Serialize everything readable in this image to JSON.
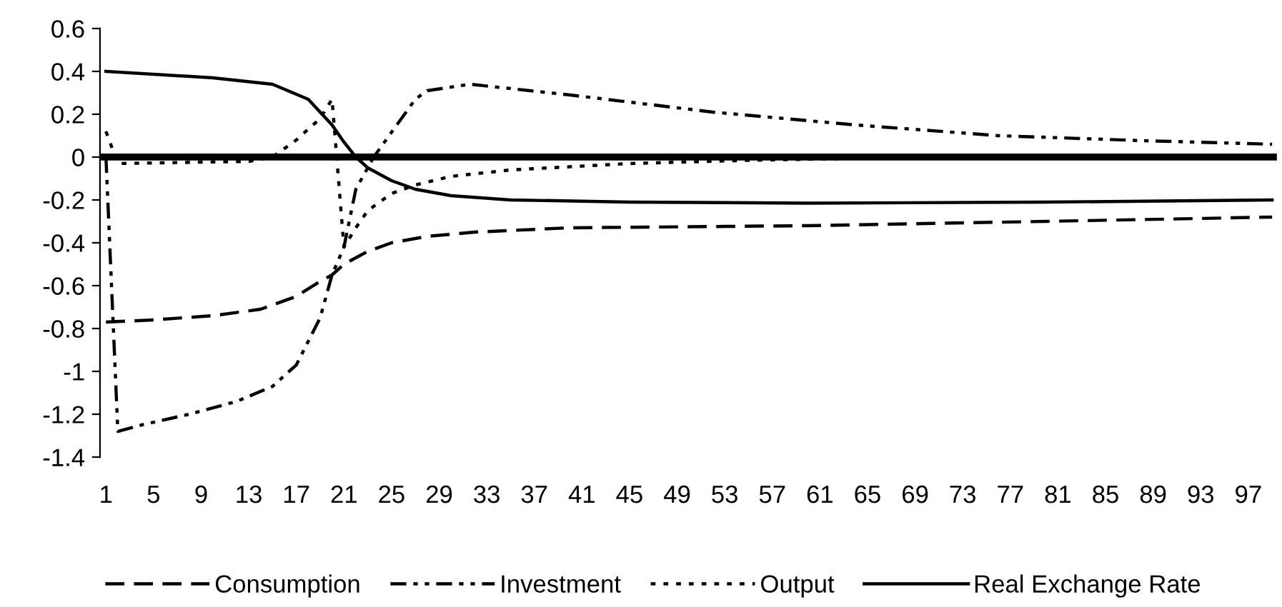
{
  "chart_data": {
    "type": "line",
    "xlim": [
      0.5,
      99.4
    ],
    "xticks": [
      1,
      5,
      9,
      13,
      17,
      21,
      25,
      29,
      33,
      37,
      41,
      45,
      49,
      53,
      57,
      61,
      65,
      69,
      73,
      77,
      81,
      85,
      89,
      93,
      97
    ],
    "ylim": [
      -1.4,
      0.6
    ],
    "yticks": [
      0.6,
      0.4,
      0.2,
      0,
      -0.2,
      -0.4,
      -0.6,
      -0.8,
      -1,
      -1.2,
      -1.4
    ],
    "grid": false,
    "legend": "bottom",
    "marker": "none",
    "ref_lines": [
      {
        "axis": "y",
        "value": 0,
        "color": "#000000"
      }
    ],
    "series": [
      {
        "name": "Consumption",
        "color": "#000000",
        "line_style": "dashed",
        "x": [
          1,
          5,
          10,
          14,
          17,
          19,
          20,
          21,
          23,
          25,
          28,
          32,
          40,
          60,
          80,
          99
        ],
        "values": [
          -0.77,
          -0.76,
          -0.74,
          -0.71,
          -0.65,
          -0.58,
          -0.55,
          -0.5,
          -0.44,
          -0.4,
          -0.37,
          -0.35,
          -0.33,
          -0.32,
          -0.3,
          -0.28
        ]
      },
      {
        "name": "Investment",
        "color": "#000000",
        "line_style": "dashdotdot",
        "x": [
          1,
          2,
          4,
          8,
          12,
          15,
          17,
          19,
          20,
          21,
          22,
          23.5,
          27,
          28,
          31.6,
          40,
          52,
          64,
          76,
          88,
          99
        ],
        "values": [
          0.0,
          -1.28,
          -1.25,
          -1.2,
          -1.14,
          -1.07,
          -0.97,
          -0.75,
          -0.55,
          -0.42,
          -0.15,
          0.0,
          0.27,
          0.31,
          0.34,
          0.29,
          0.21,
          0.15,
          0.1,
          0.077,
          0.06
        ]
      },
      {
        "name": "Output",
        "color": "#000000",
        "line_style": "dotted",
        "x": [
          1,
          2,
          13,
          15,
          17,
          19,
          20,
          21,
          22,
          23,
          25,
          27,
          30,
          35,
          45,
          55,
          65,
          70,
          99
        ],
        "values": [
          0.12,
          -0.03,
          -0.02,
          0.0,
          0.08,
          0.18,
          0.27,
          -0.42,
          -0.33,
          -0.25,
          -0.17,
          -0.13,
          -0.09,
          -0.06,
          -0.03,
          -0.015,
          -0.005,
          0.0,
          0.0
        ]
      },
      {
        "name": "Real Exchange Rate",
        "color": "#000000",
        "line_style": "solid",
        "x": [
          1,
          10,
          15,
          18,
          20,
          21,
          22,
          23,
          25,
          27,
          30,
          35,
          45,
          60,
          80,
          99
        ],
        "values": [
          0.4,
          0.37,
          0.34,
          0.27,
          0.15,
          0.07,
          0.0,
          -0.05,
          -0.11,
          -0.15,
          -0.18,
          -0.2,
          -0.21,
          -0.215,
          -0.21,
          -0.2
        ]
      }
    ]
  }
}
